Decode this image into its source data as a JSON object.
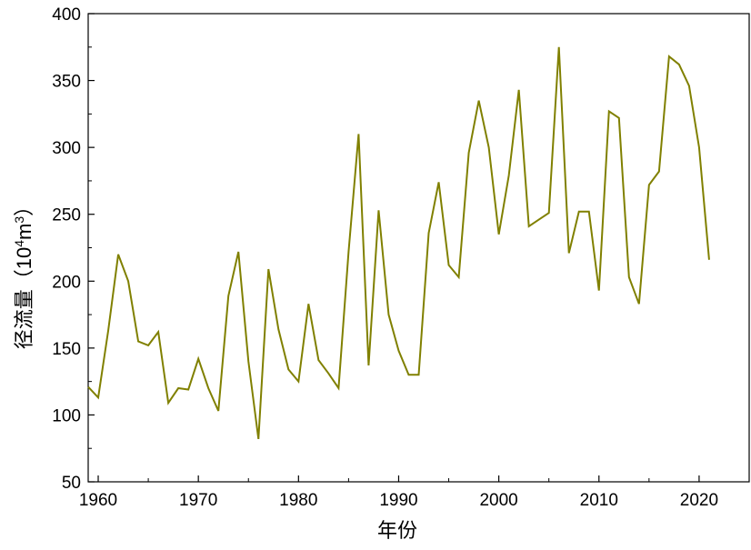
{
  "chart_data": {
    "type": "line",
    "title": "",
    "xlabel": "年份",
    "ylabel_main": "径流量（10",
    "ylabel_sup1": "4",
    "ylabel_mid": "m",
    "ylabel_sup2": "3",
    "ylabel_end": "）",
    "xlim": [
      1959,
      2025
    ],
    "ylim": [
      50,
      400
    ],
    "x_ticks": [
      1960,
      1970,
      1980,
      1990,
      2000,
      2010,
      2020
    ],
    "x_tick_labels": [
      "1960",
      "1970",
      "1980",
      "1990",
      "2000",
      "2010",
      "2020"
    ],
    "y_ticks": [
      50,
      100,
      150,
      200,
      250,
      300,
      350,
      400
    ],
    "y_tick_labels": [
      "50",
      "100",
      "150",
      "200",
      "250",
      "300",
      "350",
      "400"
    ],
    "grid": false,
    "line_color": "#808000",
    "series": [
      {
        "x": [
          1959,
          1960,
          1961,
          1962,
          1963,
          1964,
          1965,
          1966,
          1967,
          1968,
          1969,
          1970,
          1971,
          1972,
          1973,
          1974,
          1975,
          1976,
          1977,
          1978,
          1979,
          1980,
          1981,
          1982,
          1983,
          1984,
          1985,
          1986,
          1987,
          1988,
          1989,
          1990,
          1991,
          1992,
          1993,
          1994,
          1995,
          1996,
          1997,
          1998,
          1999,
          2000,
          2001,
          2002,
          2003,
          2004,
          2005,
          2006,
          2007,
          2008,
          2009,
          2010,
          2011,
          2012,
          2013,
          2014,
          2015,
          2016,
          2017,
          2018,
          2019,
          2020,
          2021
        ],
        "y": [
          121,
          113,
          163,
          220,
          200,
          155,
          152,
          162,
          109,
          120,
          119,
          142,
          120,
          103,
          189,
          222,
          140,
          82,
          209,
          164,
          134,
          125,
          183,
          141,
          131,
          120,
          222,
          310,
          137,
          253,
          175,
          148,
          130,
          130,
          236,
          274,
          212,
          203,
          296,
          335,
          300,
          235,
          279,
          343,
          241,
          246,
          251,
          375,
          221,
          252,
          252,
          193,
          327,
          322,
          203,
          183,
          272,
          282,
          368,
          362,
          346,
          300,
          216
        ]
      }
    ]
  }
}
